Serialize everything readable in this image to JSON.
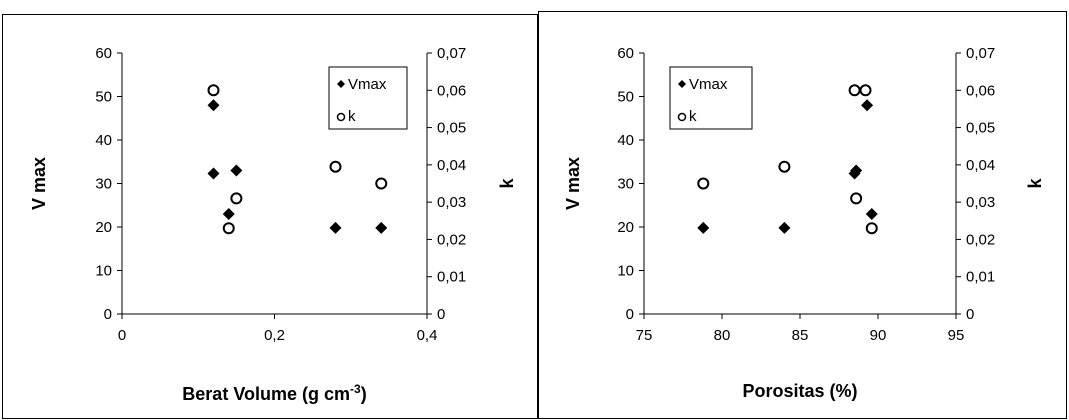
{
  "chart_data": [
    {
      "type": "scatter",
      "xlabel": "Berat Volume (g cm",
      "xlabel_sup": "-3",
      "xlabel_end": ")",
      "ylabel": "V max",
      "y2label": "k",
      "xlim": [
        0,
        0.4
      ],
      "ylim": [
        0,
        60
      ],
      "y2lim": [
        0,
        0.07
      ],
      "x_ticks": [
        "0",
        "0,2",
        "0,4"
      ],
      "x_tick_values": [
        0,
        0.2,
        0.4
      ],
      "y_ticks": [
        "0",
        "10",
        "20",
        "30",
        "40",
        "50",
        "60"
      ],
      "y_tick_values": [
        0,
        10,
        20,
        30,
        40,
        50,
        60
      ],
      "y2_ticks": [
        "0",
        "0,01",
        "0,02",
        "0,03",
        "0,04",
        "0,05",
        "0,06",
        "0,07"
      ],
      "y2_tick_values": [
        0,
        0.01,
        0.02,
        0.03,
        0.04,
        0.05,
        0.06,
        0.07
      ],
      "grid": false,
      "legend_position": "top-right",
      "series": [
        {
          "name": "Vmax",
          "axis": "left",
          "marker": "filled-diamond",
          "color": "#000000",
          "points": [
            [
              0.12,
              48
            ],
            [
              0.12,
              32.3
            ],
            [
              0.15,
              33
            ],
            [
              0.14,
              23
            ],
            [
              0.28,
              19.8
            ],
            [
              0.34,
              19.8
            ]
          ]
        },
        {
          "name": "k",
          "axis": "right",
          "marker": "open-circle",
          "color": "#000000",
          "points": [
            [
              0.12,
              0.06
            ],
            [
              0.15,
              0.031
            ],
            [
              0.14,
              0.023
            ],
            [
              0.28,
              0.0395
            ],
            [
              0.34,
              0.035
            ]
          ]
        }
      ]
    },
    {
      "type": "scatter",
      "xlabel": "Porositas (%)",
      "xlabel_sup": "",
      "xlabel_end": "",
      "ylabel": "V max",
      "y2label": "k",
      "xlim": [
        75,
        95
      ],
      "ylim": [
        0,
        60
      ],
      "y2lim": [
        0,
        0.07
      ],
      "x_ticks": [
        "75",
        "80",
        "85",
        "90",
        "95"
      ],
      "x_tick_values": [
        75,
        80,
        85,
        90,
        95
      ],
      "y_ticks": [
        "0",
        "10",
        "20",
        "30",
        "40",
        "50",
        "60"
      ],
      "y_tick_values": [
        0,
        10,
        20,
        30,
        40,
        50,
        60
      ],
      "y2_ticks": [
        "0",
        "0,01",
        "0,02",
        "0,03",
        "0,04",
        "0,05",
        "0,06",
        "0,07"
      ],
      "y2_tick_values": [
        0,
        0.01,
        0.02,
        0.03,
        0.04,
        0.05,
        0.06,
        0.07
      ],
      "grid": false,
      "legend_position": "top-left",
      "series": [
        {
          "name": "Vmax",
          "axis": "left",
          "marker": "filled-diamond",
          "color": "#000000",
          "points": [
            [
              78.8,
              19.8
            ],
            [
              84,
              19.8
            ],
            [
              88.5,
              32.3
            ],
            [
              88.6,
              33
            ],
            [
              89.3,
              48
            ],
            [
              89.6,
              23
            ]
          ]
        },
        {
          "name": "k",
          "axis": "right",
          "marker": "open-circle",
          "color": "#000000",
          "points": [
            [
              78.8,
              0.035
            ],
            [
              84,
              0.0395
            ],
            [
              88.5,
              0.06
            ],
            [
              89.2,
              0.06
            ],
            [
              88.6,
              0.031
            ],
            [
              89.6,
              0.023
            ]
          ]
        }
      ]
    }
  ]
}
